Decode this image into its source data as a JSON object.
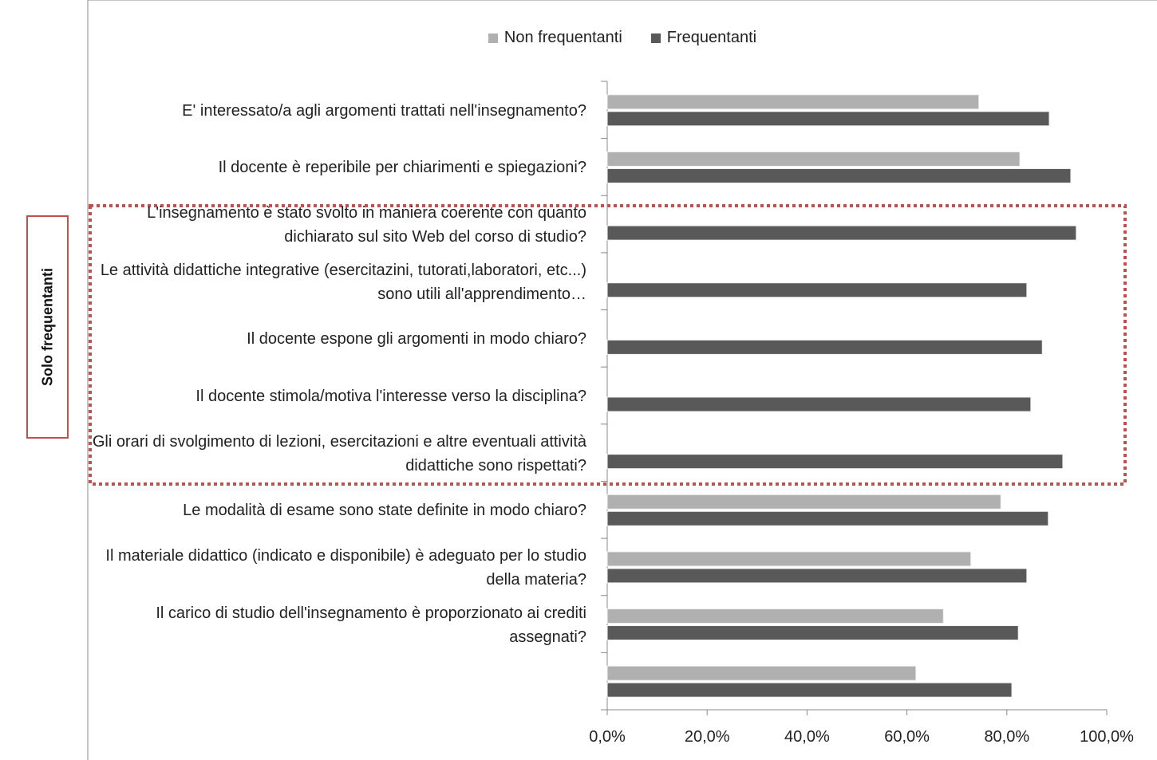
{
  "chart_data": {
    "type": "hbar",
    "annotation": "Solo frequentanti",
    "categories": [
      "E' interessato/a agli argomenti trattati nell'insegnamento?",
      "Il docente è reperibile per chiarimenti e spiegazioni?",
      "L'insegnamento è stato svolto in maniera coerente con quanto dichiarato sul sito Web del corso di studio?",
      "Le attività didattiche integrative (esercitazini, tutorati,laboratori, etc...) sono utili all'apprendimento…",
      "Il docente espone gli argomenti in modo chiaro?",
      "Il docente stimola/motiva l'interesse verso la disciplina?",
      "Gli orari di svolgimento di lezioni, esercitazioni e altre eventuali attività didattiche sono rispettati?",
      "Le modalità di esame sono state definite in modo chiaro?",
      "Il materiale didattico (indicato e disponibile) è adeguato per lo studio della materia?",
      "Il carico di studio dell'insegnamento è proporzionato ai crediti assegnati?",
      null
    ],
    "series": [
      {
        "name": "Non frequentanti",
        "color": "#b0b0b0",
        "values": [
          74.4,
          82.6,
          null,
          null,
          null,
          null,
          null,
          78.8,
          72.8,
          67.3,
          61.8
        ]
      },
      {
        "name": "Frequentanti",
        "color": "#595959",
        "values": [
          88.5,
          92.8,
          93.9,
          84.0,
          87.1,
          84.8,
          91.2,
          88.3,
          84.0,
          82.3,
          81.0
        ]
      }
    ],
    "xlim": [
      0,
      100
    ],
    "xticks": [
      {
        "value": 0,
        "label": "0,0%"
      },
      {
        "value": 20,
        "label": "20,0%"
      },
      {
        "value": 40,
        "label": "40,0%"
      },
      {
        "value": 60,
        "label": "60,0%"
      },
      {
        "value": 80,
        "label": "80,0%"
      },
      {
        "value": 100,
        "label": "100,0%"
      }
    ],
    "legend": "top"
  }
}
